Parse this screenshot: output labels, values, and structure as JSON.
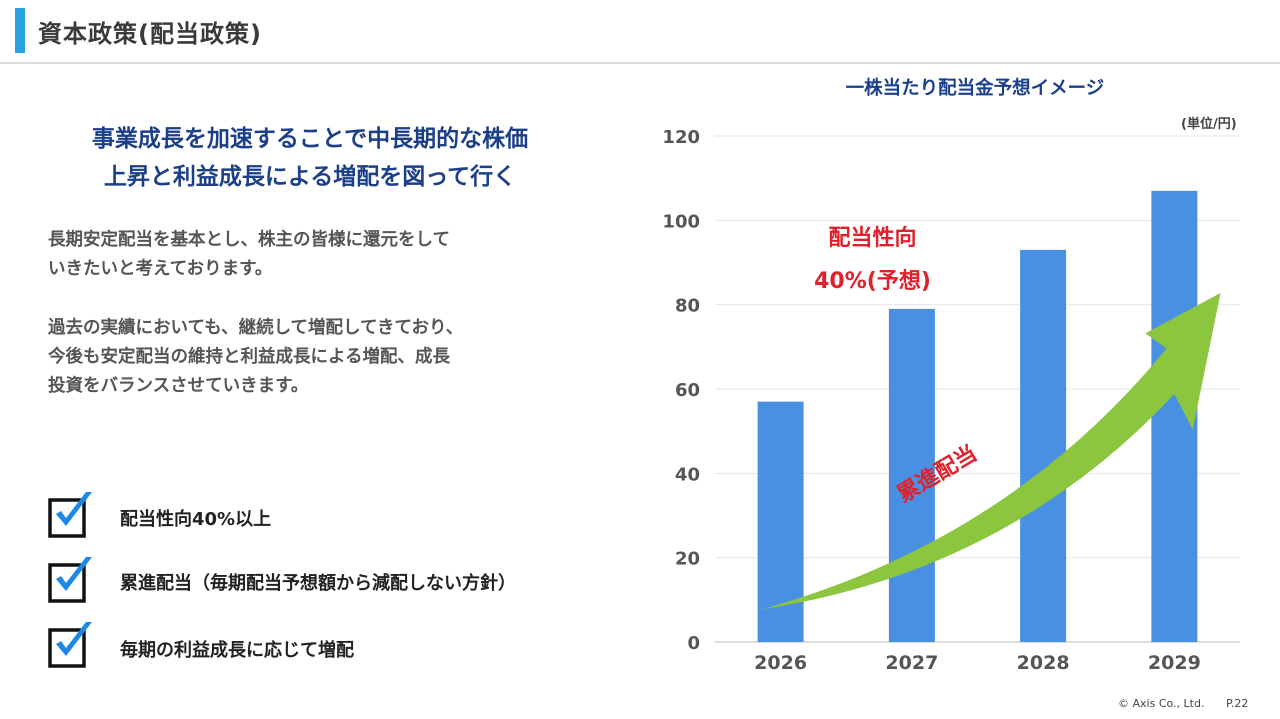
{
  "header": {
    "title": "資本政策(配当政策)"
  },
  "headline": {
    "line1": "事業成長を加速することで中長期的な株価",
    "line2": "上昇と利益成長による増配を図って行く"
  },
  "body": {
    "para1_line1": "長期安定配当を基本とし、株主の皆様に還元をして",
    "para1_line2": "いきたいと考えております。",
    "para2_line1": "過去の実績においても、継続して増配してきており、",
    "para2_line2": "今後も安定配当の維持と利益成長による増配、成長",
    "para2_line3": "投資をバランスさせていきます。"
  },
  "checklist": [
    {
      "label": "配当性向40%以上"
    },
    {
      "label": "累進配当（毎期配当予想額から減配しない方針）"
    },
    {
      "label": "毎期の利益成長に応じて増配"
    }
  ],
  "footer": {
    "copyright": "© Axis Co., Ltd.",
    "page": "P.22"
  },
  "colors": {
    "bar": "#4a90e2",
    "arrow": "#8cc63f",
    "accent_red": "#e0202a",
    "header_bar": "#29a3e0",
    "navy": "#1c3f8a"
  },
  "chart_data": {
    "type": "bar",
    "title": "一株当たり配当金予想イメージ",
    "unit": "(単位/円)",
    "categories": [
      "2026",
      "2027",
      "2028",
      "2029"
    ],
    "values": [
      57,
      79,
      93,
      107
    ],
    "ylim": [
      0,
      120
    ],
    "yticks": [
      0,
      20,
      40,
      60,
      80,
      100,
      120
    ],
    "grid": true,
    "annotations": {
      "payout_line1": "配当性向",
      "payout_line2": "40%(予想)",
      "arrow_label": "累進配当"
    }
  }
}
